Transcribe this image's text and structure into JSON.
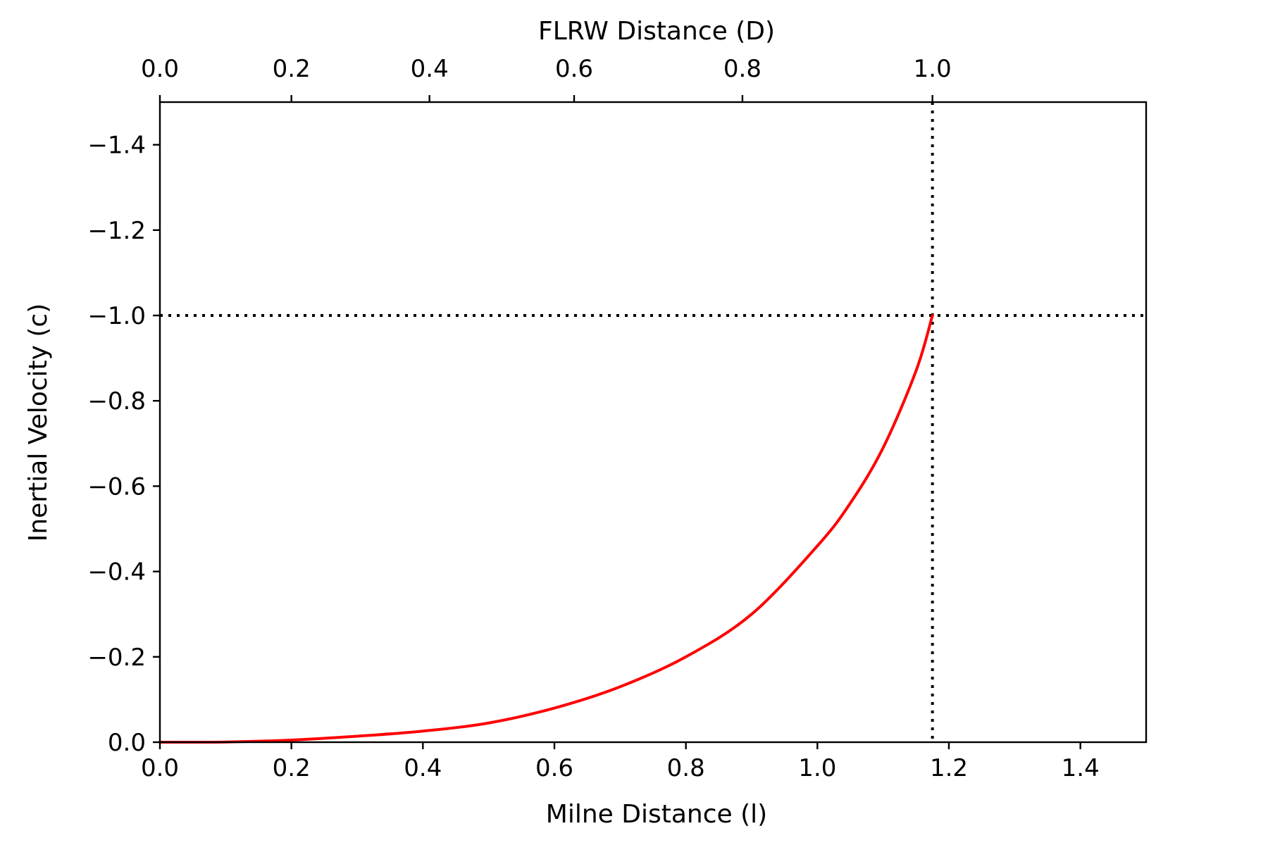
{
  "chart_data": {
    "type": "line",
    "title": "",
    "xlabel": "Milne Distance (l)",
    "ylabel": "Inertial Velocity (c)",
    "x2label": "FLRW Distance (D)",
    "xlim": [
      0.0,
      1.5
    ],
    "ylim": [
      0.0,
      -1.5
    ],
    "y_inverted": true,
    "grid": false,
    "x_ticks": [
      0.0,
      0.2,
      0.4,
      0.6,
      0.8,
      1.0,
      1.2,
      1.4
    ],
    "x_tick_labels": [
      "0.0",
      "0.2",
      "0.4",
      "0.6",
      "0.8",
      "1.0",
      "1.2",
      "1.4"
    ],
    "y_ticks": [
      0.0,
      -0.2,
      -0.4,
      -0.6,
      -0.8,
      -1.0,
      -1.2,
      -1.4
    ],
    "y_tick_labels": [
      "0.0",
      "−0.2",
      "−0.4",
      "−0.6",
      "−0.8",
      "−1.0",
      "−1.2",
      "−1.4"
    ],
    "top_axis": {
      "ticks_at_l": [
        0.0,
        0.2,
        0.41,
        0.63,
        0.886,
        1.175
      ],
      "tick_labels": [
        "0.0",
        "0.2",
        "0.4",
        "0.6",
        "0.8",
        "1.0"
      ]
    },
    "reference_lines": [
      {
        "orientation": "horizontal",
        "y": -1.0,
        "style": "dotted",
        "color": "#000000"
      },
      {
        "orientation": "vertical",
        "x": 1.175,
        "style": "dotted",
        "color": "#000000"
      }
    ],
    "series": [
      {
        "color": "#ff0000",
        "x": [
          0.0,
          0.1,
          0.2,
          0.3,
          0.4,
          0.5,
          0.6,
          0.7,
          0.8,
          0.9,
          1.0,
          1.05,
          1.1,
          1.15,
          1.175
        ],
        "y": [
          0.0,
          -0.0005,
          -0.005,
          -0.014,
          -0.026,
          -0.045,
          -0.08,
          -0.13,
          -0.2,
          -0.3,
          -0.46,
          -0.56,
          -0.69,
          -0.87,
          -1.0
        ]
      }
    ]
  }
}
